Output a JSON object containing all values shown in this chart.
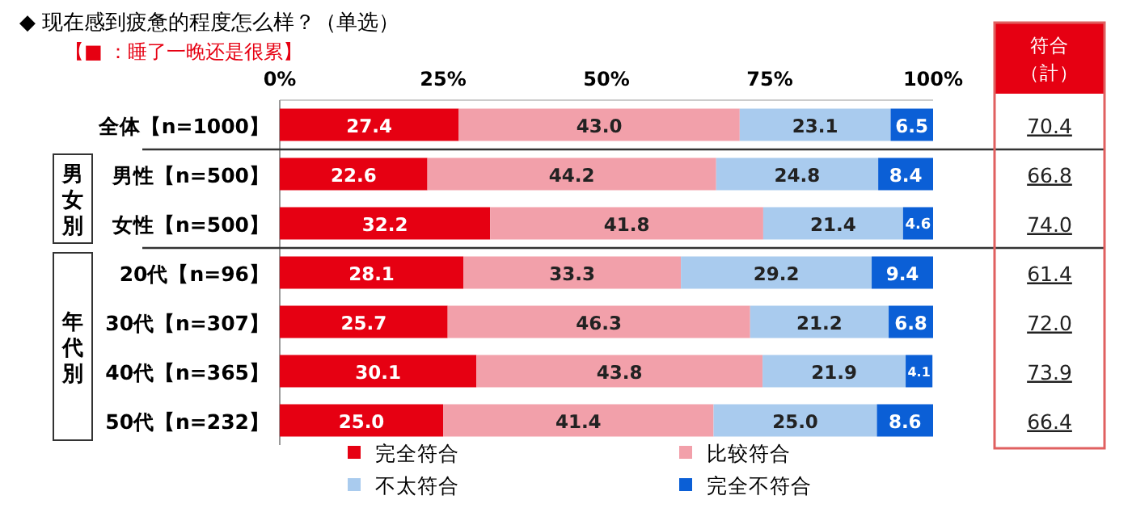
{
  "chart_data": {
    "type": "bar",
    "orientation": "horizontal",
    "stacked": true,
    "title": "◆ 现在感到疲惫的程度怎么样？（单选）",
    "subtitle": "【■ ：睡了一晚还是很累】",
    "categories": [
      "全体【n=1000】",
      "男性【n=500】",
      "女性【n=500】",
      "20代【n=96】",
      "30代【n=307】",
      "40代【n=365】",
      "50代【n=232】"
    ],
    "series": [
      {
        "name": "完全符合",
        "color": "#e60012",
        "values": [
          27.4,
          22.6,
          32.2,
          28.1,
          25.7,
          30.1,
          25.0
        ],
        "value_labels": [
          "27.4",
          "22.6",
          "32.2",
          "28.1",
          "25.7",
          "30.1",
          "25.0"
        ]
      },
      {
        "name": "比较符合",
        "color": "#f2a0aa",
        "values": [
          43.0,
          44.2,
          41.8,
          33.3,
          46.3,
          43.8,
          41.4
        ],
        "value_labels": [
          "43.0",
          "44.2",
          "41.8",
          "33.3",
          "46.3",
          "43.8",
          "41.4"
        ]
      },
      {
        "name": "不太符合",
        "color": "#a9cbee",
        "values": [
          23.1,
          24.8,
          21.4,
          29.2,
          21.2,
          21.9,
          25.0
        ],
        "value_labels": [
          "23.1",
          "24.8",
          "21.4",
          "29.2",
          "21.2",
          "21.9",
          "25.0"
        ]
      },
      {
        "name": "完全不符合",
        "color": "#0b5fd6",
        "values": [
          6.5,
          8.4,
          4.6,
          9.4,
          6.8,
          4.1,
          8.6
        ],
        "value_labels": [
          "6.5",
          "8.4",
          "4.6",
          "9.4",
          "6.8",
          "4.1",
          "8.6"
        ]
      }
    ],
    "xlim": [
      0,
      100
    ],
    "xticks": [
      {
        "value": 0,
        "label": "0%"
      },
      {
        "value": 25,
        "label": "25%"
      },
      {
        "value": 50,
        "label": "50%"
      },
      {
        "value": 75,
        "label": "75%"
      },
      {
        "value": 100,
        "label": "100%"
      }
    ],
    "annotations": [
      "男女別",
      "年代別",
      "符合（計）",
      "70.4",
      "66.8",
      "74.0",
      "61.4",
      "72.0",
      "73.9",
      "66.4"
    ],
    "legend": "bottom"
  }
}
